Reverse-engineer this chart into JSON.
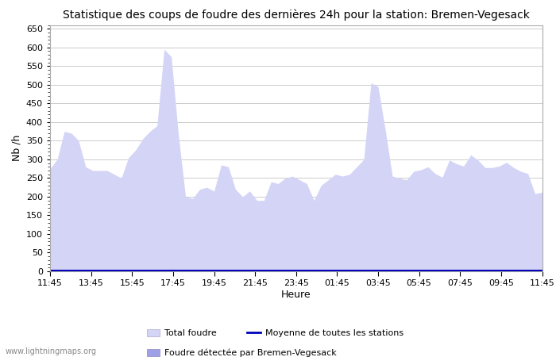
{
  "title": "Statistique des coups de foudre des dernières 24h pour la station: Bremen-Vegesack",
  "xlabel": "Heure",
  "ylabel": "Nb /h",
  "watermark": "www.lightningmaps.org",
  "legend_total": "Total foudre",
  "legend_moyenne": "Moyenne de toutes les stations",
  "legend_detected": "Foudre détectée par Bremen-Vegesack",
  "x_ticks": [
    "11:45",
    "13:45",
    "15:45",
    "17:45",
    "19:45",
    "21:45",
    "23:45",
    "01:45",
    "03:45",
    "05:45",
    "07:45",
    "09:45",
    "11:45"
  ],
  "ylim": [
    0,
    660
  ],
  "yticks": [
    0,
    50,
    100,
    150,
    200,
    250,
    300,
    350,
    400,
    450,
    500,
    550,
    600,
    650
  ],
  "bg_color": "#ffffff",
  "grid_color": "#cccccc",
  "fill_total_color": "#d4d4f7",
  "fill_detected_color": "#a0a0e8",
  "mean_line_color": "#0000bb",
  "total_foudre": [
    275,
    300,
    375,
    370,
    350,
    280,
    270,
    270,
    270,
    260,
    250,
    305,
    325,
    355,
    375,
    390,
    595,
    575,
    365,
    200,
    195,
    220,
    225,
    215,
    285,
    280,
    220,
    200,
    215,
    190,
    190,
    240,
    235,
    250,
    255,
    245,
    235,
    190,
    230,
    245,
    260,
    255,
    260,
    280,
    300,
    505,
    495,
    380,
    255,
    250,
    245,
    268,
    272,
    280,
    262,
    252,
    298,
    288,
    282,
    312,
    298,
    278,
    278,
    282,
    292,
    278,
    268,
    262,
    208,
    212
  ],
  "foudre_detected": [
    3,
    4,
    5,
    5,
    4,
    3,
    2,
    2,
    2,
    2,
    2,
    2,
    2,
    2,
    2,
    2,
    4,
    6,
    2,
    2,
    2,
    2,
    2,
    2,
    2,
    2,
    2,
    2,
    2,
    2,
    2,
    2,
    2,
    2,
    2,
    2,
    2,
    2,
    2,
    2,
    2,
    2,
    2,
    2,
    2,
    5,
    5,
    2,
    2,
    2,
    2,
    2,
    2,
    2,
    2,
    2,
    2,
    2,
    2,
    2,
    2,
    2,
    2,
    2,
    2,
    2,
    2,
    2,
    2,
    2
  ],
  "mean_line_values": [
    3,
    3,
    3,
    3,
    3,
    3,
    3,
    3,
    3,
    3,
    3,
    3,
    3,
    3,
    3,
    3,
    3,
    3,
    3,
    3,
    3,
    3,
    3,
    3,
    3,
    3,
    3,
    3,
    3,
    3,
    3,
    3,
    3,
    3,
    3,
    3,
    3,
    3,
    3,
    3,
    3,
    3,
    3,
    3,
    3,
    3,
    3,
    3,
    3,
    3,
    3,
    3,
    3,
    3,
    3,
    3,
    3,
    3,
    3,
    3,
    3,
    3,
    3,
    3,
    3,
    3,
    3,
    3,
    3,
    3
  ]
}
